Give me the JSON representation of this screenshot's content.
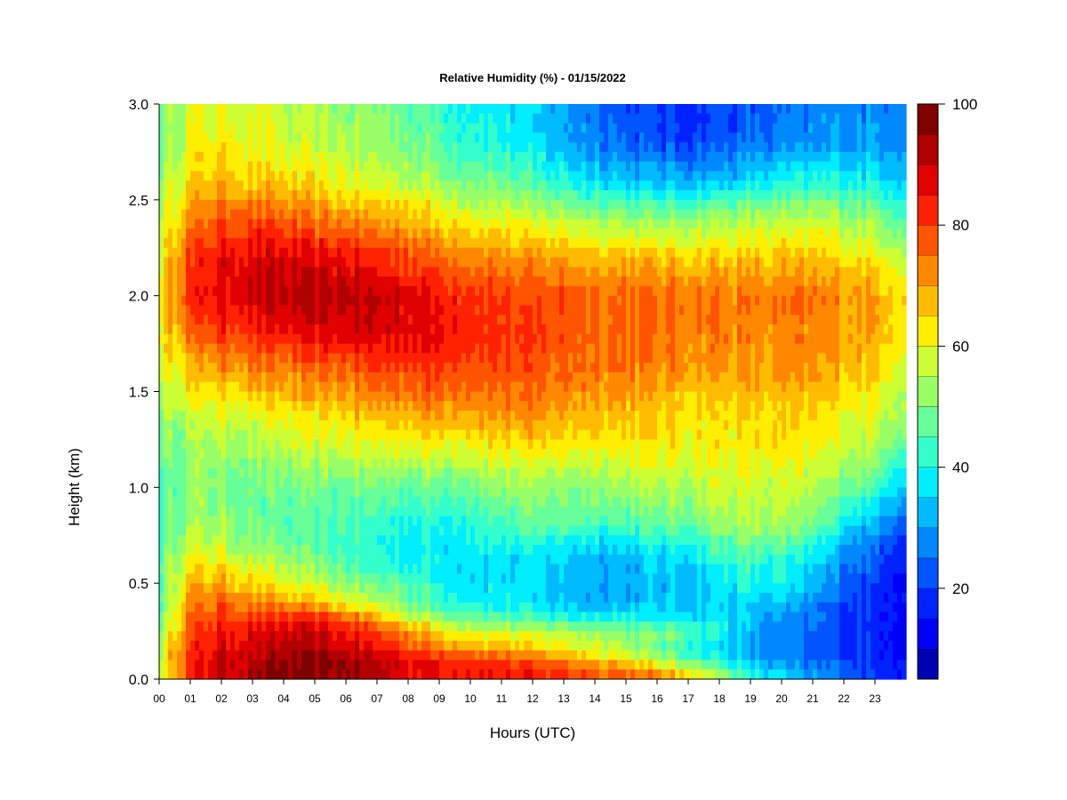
{
  "chart_data": {
    "type": "heatmap",
    "title": "Relative Humidity (%) - 01/15/2022",
    "xlabel": "Hours (UTC)",
    "ylabel": "Height (km)",
    "x_tick_labels": [
      "00",
      "01",
      "02",
      "03",
      "04",
      "05",
      "06",
      "07",
      "08",
      "09",
      "10",
      "11",
      "12",
      "13",
      "14",
      "15",
      "16",
      "17",
      "18",
      "19",
      "20",
      "21",
      "22",
      "23"
    ],
    "x_range": [
      0,
      24
    ],
    "y_tick_labels": [
      "0.0",
      "0.5",
      "1.0",
      "1.5",
      "2.0",
      "2.5",
      "3.0"
    ],
    "y_ticks": [
      0.0,
      0.5,
      1.0,
      1.5,
      2.0,
      2.5,
      3.0
    ],
    "ylim": [
      0,
      3.0
    ],
    "colorbar": {
      "tick_labels": [
        "20",
        "40",
        "60",
        "80",
        "100"
      ],
      "tick_values": [
        20,
        40,
        60,
        80,
        100
      ],
      "range": [
        5,
        100
      ],
      "levels": [
        5,
        10,
        15,
        20,
        25,
        30,
        35,
        40,
        45,
        50,
        55,
        60,
        65,
        70,
        75,
        80,
        85,
        90,
        95,
        100
      ],
      "colors": [
        "#00007f",
        "#0000b2",
        "#0000ff",
        "#0022ff",
        "#0055ff",
        "#0088ff",
        "#00bbff",
        "#00eeff",
        "#33ffcc",
        "#66ff99",
        "#99ff66",
        "#ccff33",
        "#ffee00",
        "#ffbb00",
        "#ff8800",
        "#ff5500",
        "#ff2200",
        "#e00000",
        "#b00000",
        "#7f0000"
      ]
    },
    "heights_km": [
      0.0,
      0.05,
      0.1,
      0.15,
      0.2,
      0.25,
      0.3,
      0.35,
      0.4,
      0.5,
      0.6,
      0.7,
      0.8,
      1.0,
      1.2,
      1.4,
      1.6,
      1.8,
      2.0,
      2.2,
      2.4,
      2.6,
      2.8,
      3.0
    ],
    "hours_utc": [
      0,
      0.5,
      1,
      2,
      3,
      4,
      5,
      6,
      7,
      8,
      9,
      10,
      11,
      12,
      13,
      14,
      15,
      16,
      17,
      18,
      19,
      20,
      21,
      22,
      23,
      23.9
    ],
    "rh_percent": [
      [
        55,
        72,
        85,
        90,
        92,
        95,
        95,
        95,
        92,
        88,
        85,
        85,
        85,
        85,
        82,
        80,
        78,
        72,
        65,
        55,
        40,
        35,
        30,
        28,
        20,
        18
      ],
      [
        55,
        70,
        82,
        90,
        93,
        96,
        97,
        96,
        93,
        88,
        86,
        85,
        84,
        82,
        80,
        78,
        75,
        70,
        62,
        50,
        40,
        32,
        28,
        25,
        20,
        18
      ],
      [
        58,
        72,
        83,
        90,
        92,
        95,
        96,
        95,
        92,
        88,
        85,
        82,
        80,
        76,
        72,
        68,
        62,
        55,
        45,
        40,
        32,
        28,
        22,
        20,
        18,
        16
      ],
      [
        55,
        70,
        82,
        88,
        90,
        92,
        92,
        90,
        86,
        80,
        75,
        72,
        70,
        65,
        62,
        60,
        55,
        48,
        42,
        36,
        30,
        26,
        22,
        20,
        18,
        15
      ],
      [
        52,
        68,
        80,
        86,
        88,
        90,
        90,
        88,
        82,
        76,
        70,
        66,
        64,
        62,
        60,
        58,
        55,
        50,
        44,
        36,
        30,
        26,
        22,
        20,
        18,
        15
      ],
      [
        50,
        65,
        78,
        85,
        86,
        88,
        88,
        86,
        80,
        72,
        65,
        60,
        58,
        56,
        55,
        55,
        52,
        50,
        46,
        40,
        32,
        27,
        24,
        20,
        18,
        15
      ],
      [
        48,
        63,
        76,
        82,
        82,
        84,
        84,
        80,
        72,
        62,
        55,
        50,
        48,
        46,
        45,
        44,
        42,
        40,
        40,
        38,
        34,
        28,
        25,
        20,
        18,
        15
      ],
      [
        46,
        62,
        74,
        80,
        78,
        78,
        76,
        70,
        62,
        55,
        48,
        44,
        42,
        40,
        38,
        36,
        35,
        35,
        36,
        35,
        32,
        28,
        25,
        20,
        18,
        16
      ],
      [
        45,
        60,
        72,
        76,
        72,
        70,
        66,
        60,
        55,
        50,
        42,
        40,
        38,
        36,
        34,
        32,
        32,
        32,
        34,
        36,
        35,
        32,
        28,
        22,
        18,
        16
      ],
      [
        45,
        58,
        68,
        70,
        65,
        60,
        56,
        52,
        48,
        45,
        40,
        38,
        36,
        35,
        33,
        32,
        32,
        32,
        34,
        38,
        40,
        38,
        32,
        26,
        20,
        16
      ],
      [
        45,
        56,
        62,
        62,
        58,
        55,
        50,
        46,
        42,
        40,
        38,
        38,
        36,
        35,
        34,
        32,
        32,
        34,
        36,
        40,
        42,
        40,
        35,
        28,
        22,
        18
      ],
      [
        44,
        52,
        58,
        56,
        52,
        48,
        46,
        44,
        40,
        38,
        38,
        40,
        40,
        40,
        38,
        36,
        36,
        38,
        40,
        45,
        48,
        45,
        40,
        32,
        25,
        20
      ],
      [
        44,
        50,
        55,
        52,
        48,
        45,
        44,
        44,
        42,
        40,
        40,
        42,
        44,
        46,
        46,
        45,
        45,
        46,
        48,
        52,
        55,
        52,
        48,
        40,
        32,
        25
      ],
      [
        45,
        48,
        52,
        50,
        48,
        48,
        48,
        48,
        48,
        48,
        48,
        50,
        52,
        52,
        52,
        52,
        54,
        55,
        56,
        58,
        58,
        56,
        55,
        50,
        44,
        36
      ],
      [
        48,
        50,
        52,
        54,
        54,
        55,
        56,
        58,
        58,
        60,
        60,
        62,
        62,
        62,
        62,
        62,
        62,
        62,
        62,
        62,
        62,
        62,
        60,
        58,
        55,
        48
      ],
      [
        52,
        56,
        58,
        60,
        60,
        62,
        64,
        66,
        68,
        70,
        72,
        72,
        72,
        72,
        70,
        70,
        68,
        66,
        64,
        64,
        64,
        64,
        64,
        62,
        60,
        55
      ],
      [
        58,
        62,
        66,
        70,
        72,
        72,
        74,
        76,
        78,
        80,
        80,
        80,
        78,
        76,
        76,
        75,
        74,
        72,
        72,
        70,
        70,
        70,
        70,
        68,
        66,
        60
      ],
      [
        62,
        68,
        75,
        80,
        82,
        84,
        86,
        88,
        88,
        88,
        86,
        84,
        82,
        80,
        78,
        76,
        76,
        75,
        74,
        74,
        72,
        72,
        72,
        70,
        70,
        64
      ],
      [
        64,
        72,
        82,
        88,
        90,
        92,
        92,
        92,
        90,
        88,
        85,
        82,
        80,
        78,
        78,
        76,
        76,
        76,
        75,
        74,
        74,
        74,
        74,
        72,
        70,
        66
      ],
      [
        60,
        70,
        80,
        86,
        88,
        88,
        86,
        86,
        82,
        80,
        76,
        74,
        72,
        70,
        70,
        68,
        68,
        66,
        66,
        66,
        66,
        66,
        66,
        64,
        62,
        58
      ],
      [
        56,
        64,
        72,
        78,
        78,
        76,
        74,
        72,
        70,
        68,
        64,
        62,
        60,
        58,
        56,
        54,
        52,
        52,
        52,
        54,
        55,
        55,
        55,
        54,
        52,
        48
      ],
      [
        52,
        58,
        64,
        68,
        66,
        64,
        62,
        60,
        58,
        56,
        52,
        50,
        48,
        44,
        40,
        36,
        34,
        32,
        32,
        34,
        36,
        38,
        40,
        40,
        38,
        36
      ],
      [
        50,
        55,
        60,
        62,
        60,
        58,
        56,
        54,
        52,
        50,
        46,
        42,
        40,
        36,
        32,
        28,
        24,
        22,
        20,
        22,
        24,
        26,
        28,
        30,
        30,
        30
      ],
      [
        50,
        54,
        58,
        60,
        58,
        56,
        54,
        52,
        50,
        48,
        44,
        40,
        38,
        34,
        30,
        26,
        22,
        20,
        18,
        20,
        22,
        24,
        26,
        28,
        28,
        28
      ]
    ]
  }
}
